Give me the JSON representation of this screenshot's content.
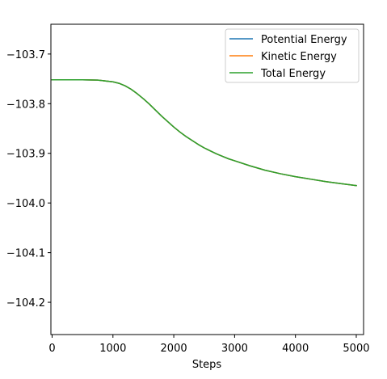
{
  "chart_data": {
    "type": "line",
    "title": "",
    "xlabel": "Steps",
    "ylabel": "",
    "xlim": [
      -20,
      5120
    ],
    "ylim": [
      -104.265,
      -103.64
    ],
    "xticks": [
      0,
      1000,
      2000,
      3000,
      4000,
      5000
    ],
    "xtick_labels": [
      "0",
      "1000",
      "2000",
      "3000",
      "4000",
      "5000"
    ],
    "yticks": [
      -103.7,
      -103.8,
      -103.9,
      -104.0,
      -104.1,
      -104.2
    ],
    "ytick_labels": [
      "−103.7",
      "−103.8",
      "−103.9",
      "−104.0",
      "−104.1",
      "−104.2"
    ],
    "grid": false,
    "legend_position": "top-right",
    "x": [
      0,
      250,
      500,
      750,
      1000,
      1100,
      1200,
      1300,
      1400,
      1500,
      1600,
      1700,
      1800,
      1900,
      2000,
      2100,
      2200,
      2300,
      2400,
      2500,
      2600,
      2700,
      2800,
      2900,
      3000,
      3250,
      3500,
      3750,
      4000,
      4250,
      4500,
      4750,
      5000
    ],
    "series": [
      {
        "name": "Potential Energy",
        "color": "#1f77b4",
        "values": [
          -103.752,
          -103.752,
          -103.752,
          -103.7525,
          -103.756,
          -103.759,
          -103.764,
          -103.771,
          -103.78,
          -103.79,
          -103.801,
          -103.813,
          -103.825,
          -103.836,
          -103.847,
          -103.857,
          -103.866,
          -103.874,
          -103.882,
          -103.889,
          -103.895,
          -103.901,
          -103.906,
          -103.911,
          -103.915,
          -103.925,
          -103.934,
          -103.941,
          -103.947,
          -103.952,
          -103.957,
          -103.961,
          -103.965
        ]
      },
      {
        "name": "Kinetic Energy",
        "color": "#ff7f0e",
        "values": [
          -103.752,
          -103.752,
          -103.752,
          -103.7525,
          -103.756,
          -103.759,
          -103.764,
          -103.771,
          -103.78,
          -103.79,
          -103.801,
          -103.813,
          -103.825,
          -103.836,
          -103.847,
          -103.857,
          -103.866,
          -103.874,
          -103.882,
          -103.889,
          -103.895,
          -103.901,
          -103.906,
          -103.911,
          -103.915,
          -103.925,
          -103.934,
          -103.941,
          -103.947,
          -103.952,
          -103.957,
          -103.961,
          -103.965
        ]
      },
      {
        "name": "Total Energy",
        "color": "#2ca02c",
        "values": [
          -103.752,
          -103.752,
          -103.752,
          -103.7525,
          -103.756,
          -103.759,
          -103.764,
          -103.771,
          -103.78,
          -103.79,
          -103.801,
          -103.813,
          -103.825,
          -103.836,
          -103.847,
          -103.857,
          -103.866,
          -103.874,
          -103.882,
          -103.889,
          -103.895,
          -103.901,
          -103.906,
          -103.911,
          -103.915,
          -103.925,
          -103.934,
          -103.941,
          -103.947,
          -103.952,
          -103.957,
          -103.961,
          -103.965
        ]
      }
    ]
  }
}
